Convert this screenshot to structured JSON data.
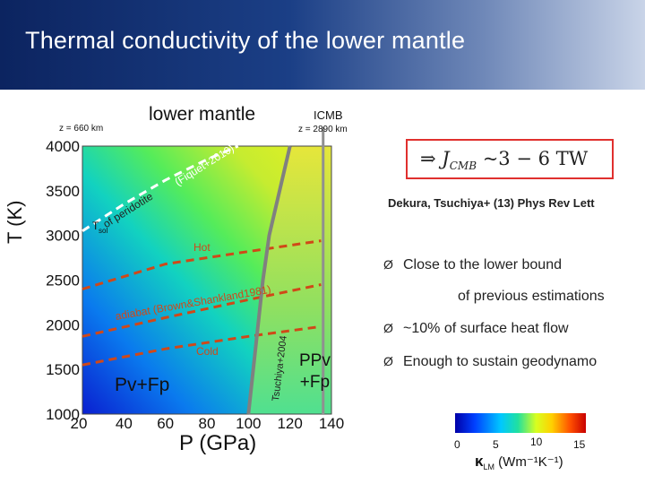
{
  "slide": {
    "title": "Thermal conductivity of the lower mantle"
  },
  "chart_data": {
    "type": "heatmap",
    "title": "lower mantle",
    "xlabel": "P (GPa)",
    "ylabel": "T (K)",
    "xlim": [
      20,
      140
    ],
    "ylim": [
      1000,
      4000
    ],
    "x_ticks": [
      "20",
      "40",
      "60",
      "80",
      "100",
      "120",
      "140"
    ],
    "y_ticks": [
      "4000",
      "3500",
      "3000",
      "2500",
      "2000",
      "1500",
      "1000"
    ],
    "depth_left": "z = 660 km",
    "depth_right": "z = 2890 km",
    "cmb_label": "ICMB",
    "region_labels": [
      "Pv+Fp",
      "PPv\n+Fp",
      "Hot",
      "Cold"
    ],
    "curves": [
      {
        "name": "Tsol of peridotite (Fiquet+2010)",
        "color": "#ffffff",
        "style": "dashed",
        "points": [
          [
            20,
            3050
          ],
          [
            40,
            3350
          ],
          [
            60,
            3620
          ],
          [
            80,
            3850
          ],
          [
            95,
            4000
          ]
        ]
      },
      {
        "name": "adiabat (Brown&Shankland1981)",
        "color": "#d04818",
        "style": "dashed",
        "points": [
          [
            20,
            1870
          ],
          [
            60,
            2080
          ],
          [
            100,
            2280
          ],
          [
            135,
            2450
          ]
        ]
      },
      {
        "name": "Hot",
        "color": "#d04818",
        "style": "dashed",
        "points": [
          [
            20,
            2400
          ],
          [
            60,
            2680
          ],
          [
            100,
            2820
          ],
          [
            135,
            2940
          ]
        ]
      },
      {
        "name": "Cold",
        "color": "#d04818",
        "style": "dashed",
        "points": [
          [
            20,
            1550
          ],
          [
            60,
            1730
          ],
          [
            100,
            1870
          ],
          [
            135,
            1980
          ]
        ]
      },
      {
        "name": "Tsuchiya+2004",
        "color": "#808080",
        "style": "solid",
        "points": [
          [
            100,
            1000
          ],
          [
            107,
            2500
          ],
          [
            110,
            3000
          ],
          [
            120,
            4000
          ]
        ]
      }
    ],
    "curve_labels": [
      "T",
      "sol",
      "of peridotite",
      "(Fiquet+2010)",
      "adiabat (Brown&Shankland1981)",
      "Tsuchiya+2004"
    ],
    "colorbar": {
      "label": "κ",
      "sub": "LM",
      "units": "(Wm⁻¹K⁻¹)",
      "ticks": [
        "0",
        "5",
        "10",
        "15"
      ],
      "range": [
        0,
        15
      ]
    }
  },
  "annotations": {
    "formula_arrow": "⇒",
    "formula_j": "J",
    "formula_sub": "CMB",
    "formula_rest": " ~3 − 6 TW",
    "reference": "Dekura, Tsuchiya+ (13) Phys Rev Lett",
    "bullet_marker": "Ø",
    "bullets": [
      "Close to the lower bound",
      "of previous estimations",
      "~10% of surface heat flow",
      "Enough to sustain geodynamo"
    ]
  }
}
